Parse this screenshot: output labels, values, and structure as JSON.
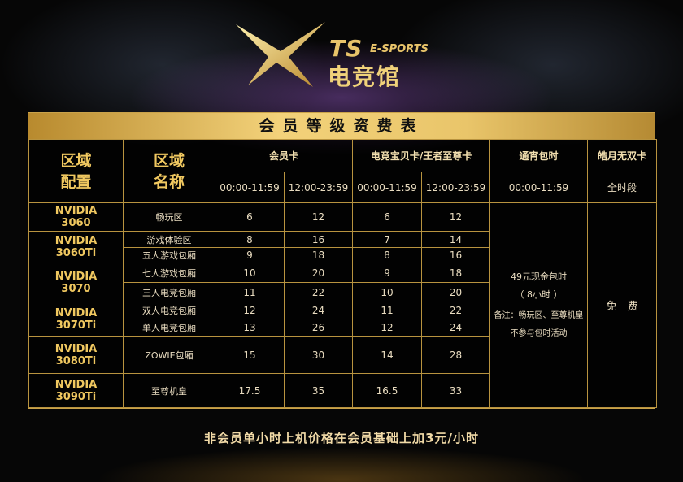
{
  "logo": {
    "brand": "TS",
    "sub": "E-SPORTS",
    "cn": "电竞馆"
  },
  "title": "会员等级资费表",
  "headers": {
    "config": "区域\n配置",
    "zone": "区域\n名称",
    "member": "会员卡",
    "baby": "电竞宝贝卡/王者至尊卡",
    "overnight": "通宵包时",
    "moon": "皓月无双卡",
    "t1": "00:00-11:59",
    "t2": "12:00-23:59",
    "t3": "00:00-11:59",
    "t4": "12:00-23:59",
    "t5": "00:00-11:59",
    "t6": "全时段"
  },
  "groups": [
    {
      "gpu": "NVIDIA\n3060",
      "rows": [
        {
          "zone": "畅玩区",
          "m1": "6",
          "m2": "12",
          "b1": "6",
          "b2": "12"
        }
      ]
    },
    {
      "gpu": "NVIDIA\n3060Ti",
      "rows": [
        {
          "zone": "游戏体验区",
          "m1": "8",
          "m2": "16",
          "b1": "7",
          "b2": "14"
        },
        {
          "zone": "五人游戏包厢",
          "m1": "9",
          "m2": "18",
          "b1": "8",
          "b2": "16"
        }
      ]
    },
    {
      "gpu": "NVIDIA\n3070",
      "rows": [
        {
          "zone": "七人游戏包厢",
          "m1": "10",
          "m2": "20",
          "b1": "9",
          "b2": "18"
        },
        {
          "zone": "三人电竞包厢",
          "m1": "11",
          "m2": "22",
          "b1": "10",
          "b2": "20"
        }
      ]
    },
    {
      "gpu": "NVIDIA\n3070Ti",
      "rows": [
        {
          "zone": "双人电竞包厢",
          "m1": "12",
          "m2": "24",
          "b1": "11",
          "b2": "22"
        },
        {
          "zone": "单人电竞包厢",
          "m1": "13",
          "m2": "26",
          "b1": "12",
          "b2": "24"
        }
      ]
    },
    {
      "gpu": "NVIDIA\n3080Ti",
      "rows": [
        {
          "zone": "ZOWIE包厢",
          "m1": "15",
          "m2": "30",
          "b1": "14",
          "b2": "28"
        }
      ]
    },
    {
      "gpu": "NVIDIA\n3090Ti",
      "rows": [
        {
          "zone": "至尊机皇",
          "m1": "17.5",
          "m2": "35",
          "b1": "16.5",
          "b2": "33"
        }
      ]
    }
  ],
  "overnight": {
    "price": "49元现金包时",
    "hours": "（ 8小时 ）",
    "note1": "备注：畅玩区、至尊机皇",
    "note2": "不参与包时活动"
  },
  "moon_free": "免　费",
  "footer": "非会员单小时上机价格在会员基础上加3元/小时",
  "colors": {
    "gold": "#f0c860",
    "border": "#b8933f"
  }
}
